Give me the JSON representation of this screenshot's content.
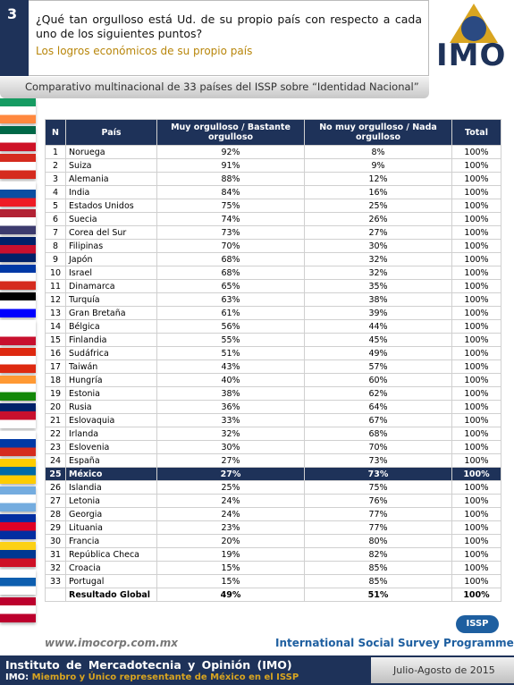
{
  "header": {
    "number": "3",
    "question": "¿Qué tan orgulloso está Ud. de su propio país con respecto a cada uno de los siguientes puntos?",
    "subtitle": "Los logros económicos de su propio país",
    "logo": "IMO",
    "caption": "Comparativo multinacional de 33 países del ISSP sobre “Identidad Nacional”"
  },
  "table": {
    "columns": [
      "N",
      "País",
      "Muy orgulloso / Bastante orgulloso",
      "No muy orgulloso / Nada orgulloso",
      "Total"
    ],
    "rows": [
      [
        1,
        "Noruega",
        "92%",
        "8%",
        "100%"
      ],
      [
        2,
        "Suiza",
        "91%",
        "9%",
        "100%"
      ],
      [
        3,
        "Alemania",
        "88%",
        "12%",
        "100%"
      ],
      [
        4,
        "India",
        "84%",
        "16%",
        "100%"
      ],
      [
        5,
        "Estados Unidos",
        "75%",
        "25%",
        "100%"
      ],
      [
        6,
        "Suecia",
        "74%",
        "26%",
        "100%"
      ],
      [
        7,
        "Corea del Sur",
        "73%",
        "27%",
        "100%"
      ],
      [
        8,
        "Filipinas",
        "70%",
        "30%",
        "100%"
      ],
      [
        9,
        "Japón",
        "68%",
        "32%",
        "100%"
      ],
      [
        10,
        "Israel",
        "68%",
        "32%",
        "100%"
      ],
      [
        11,
        "Dinamarca",
        "65%",
        "35%",
        "100%"
      ],
      [
        12,
        "Turquía",
        "63%",
        "38%",
        "100%"
      ],
      [
        13,
        "Gran Bretaña",
        "61%",
        "39%",
        "100%"
      ],
      [
        14,
        "Bélgica",
        "56%",
        "44%",
        "100%"
      ],
      [
        15,
        "Finlandia",
        "55%",
        "45%",
        "100%"
      ],
      [
        16,
        "Sudáfrica",
        "51%",
        "49%",
        "100%"
      ],
      [
        17,
        "Taiwán",
        "43%",
        "57%",
        "100%"
      ],
      [
        18,
        "Hungría",
        "40%",
        "60%",
        "100%"
      ],
      [
        19,
        "Estonia",
        "38%",
        "62%",
        "100%"
      ],
      [
        20,
        "Rusia",
        "36%",
        "64%",
        "100%"
      ],
      [
        21,
        "Eslovaquia",
        "33%",
        "67%",
        "100%"
      ],
      [
        22,
        "Irlanda",
        "32%",
        "68%",
        "100%"
      ],
      [
        23,
        "Eslovenia",
        "30%",
        "70%",
        "100%"
      ],
      [
        24,
        "España",
        "27%",
        "73%",
        "100%"
      ],
      [
        25,
        "México",
        "27%",
        "73%",
        "100%"
      ],
      [
        26,
        "Islandia",
        "25%",
        "75%",
        "100%"
      ],
      [
        27,
        "Letonia",
        "24%",
        "76%",
        "100%"
      ],
      [
        28,
        "Georgia",
        "24%",
        "77%",
        "100%"
      ],
      [
        29,
        "Lituania",
        "23%",
        "77%",
        "100%"
      ],
      [
        30,
        "Francia",
        "20%",
        "80%",
        "100%"
      ],
      [
        31,
        "República Checa",
        "19%",
        "82%",
        "100%"
      ],
      [
        32,
        "Croacia",
        "15%",
        "85%",
        "100%"
      ],
      [
        33,
        "Portugal",
        "15%",
        "85%",
        "100%"
      ]
    ],
    "highlighted_rows": [
      24
    ],
    "total_row": {
      "label": "Resultado Global",
      "values": [
        "49%",
        "51%",
        "100%"
      ]
    }
  },
  "footer": {
    "url": "www.imocorp.com.mx",
    "issp_logo": "ISSP",
    "programme": "International Social Survey Programme",
    "institute": "Instituto de Mercadotecnia y Opinión (IMO)",
    "member_prefix": "IMO:",
    "member_text": "Miembro y Único representante de México en el ISSP",
    "date": "Julio-Agosto de 2015"
  }
}
